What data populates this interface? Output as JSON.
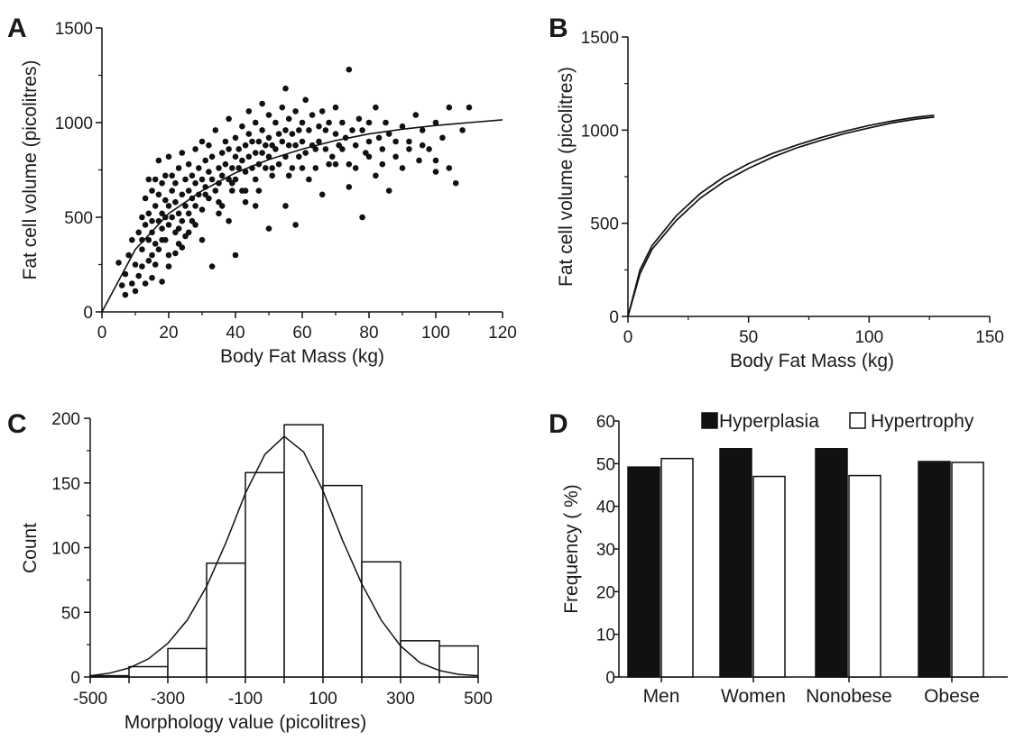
{
  "panels": [
    {
      "letter": "A"
    },
    {
      "letter": "B"
    },
    {
      "letter": "C"
    },
    {
      "letter": "D"
    }
  ],
  "chart_data": [
    {
      "id": "A",
      "type": "scatter",
      "xlabel": "Body Fat Mass (kg)",
      "ylabel": "Fat cell volume  (picolitres)",
      "xlim": [
        0,
        120
      ],
      "ylim": [
        0,
        1500
      ],
      "xticks": [
        "0",
        "20",
        "40",
        "60",
        "80",
        "100",
        "120"
      ],
      "yticks": [
        "0",
        "500",
        "1000",
        "1500"
      ],
      "points": [
        [
          5,
          260
        ],
        [
          6,
          140
        ],
        [
          7,
          90
        ],
        [
          7,
          200
        ],
        [
          8,
          300
        ],
        [
          9,
          150
        ],
        [
          9,
          380
        ],
        [
          10,
          250
        ],
        [
          10,
          110
        ],
        [
          11,
          420
        ],
        [
          11,
          190
        ],
        [
          12,
          500
        ],
        [
          12,
          330
        ],
        [
          12,
          240
        ],
        [
          13,
          460
        ],
        [
          13,
          150
        ],
        [
          13,
          600
        ],
        [
          14,
          380
        ],
        [
          14,
          270
        ],
        [
          14,
          520
        ],
        [
          15,
          640
        ],
        [
          15,
          300
        ],
        [
          15,
          420
        ],
        [
          15,
          180
        ],
        [
          16,
          560
        ],
        [
          16,
          700
        ],
        [
          16,
          360
        ],
        [
          16,
          250
        ],
        [
          17,
          480
        ],
        [
          17,
          620
        ],
        [
          17,
          800
        ],
        [
          17,
          330
        ],
        [
          18,
          520
        ],
        [
          18,
          440
        ],
        [
          18,
          680
        ],
        [
          18,
          160
        ],
        [
          19,
          590
        ],
        [
          19,
          720
        ],
        [
          19,
          380
        ],
        [
          20,
          460
        ],
        [
          20,
          560
        ],
        [
          20,
          820
        ],
        [
          20,
          300
        ],
        [
          21,
          640
        ],
        [
          21,
          500
        ],
        [
          21,
          720
        ],
        [
          22,
          420
        ],
        [
          22,
          580
        ],
        [
          22,
          680
        ],
        [
          23,
          520
        ],
        [
          23,
          760
        ],
        [
          23,
          360
        ],
        [
          24,
          620
        ],
        [
          24,
          480
        ],
        [
          24,
          840
        ],
        [
          25,
          560
        ],
        [
          25,
          700
        ],
        [
          25,
          400
        ],
        [
          26,
          640
        ],
        [
          26,
          780
        ],
        [
          26,
          520
        ],
        [
          27,
          600
        ],
        [
          27,
          720
        ],
        [
          28,
          680
        ],
        [
          28,
          560
        ],
        [
          28,
          860
        ],
        [
          29,
          620
        ],
        [
          29,
          760
        ],
        [
          30,
          700
        ],
        [
          30,
          540
        ],
        [
          30,
          900
        ],
        [
          31,
          660
        ],
        [
          31,
          800
        ],
        [
          32,
          740
        ],
        [
          32,
          600
        ],
        [
          32,
          880
        ],
        [
          33,
          700
        ],
        [
          33,
          820
        ],
        [
          34,
          640
        ],
        [
          34,
          960
        ],
        [
          35,
          760
        ],
        [
          35,
          680
        ],
        [
          36,
          840
        ],
        [
          36,
          720
        ],
        [
          36,
          560
        ],
        [
          37,
          900
        ],
        [
          37,
          780
        ],
        [
          38,
          700
        ],
        [
          38,
          860
        ],
        [
          38,
          1020
        ],
        [
          39,
          760
        ],
        [
          39,
          640
        ],
        [
          40,
          820
        ],
        [
          40,
          920
        ],
        [
          40,
          700
        ],
        [
          41,
          860
        ],
        [
          41,
          760
        ],
        [
          42,
          980
        ],
        [
          42,
          800
        ],
        [
          42,
          640
        ],
        [
          43,
          880
        ],
        [
          43,
          740
        ],
        [
          44,
          940
        ],
        [
          44,
          820
        ],
        [
          44,
          1060
        ],
        [
          45,
          760
        ],
        [
          45,
          900
        ],
        [
          46,
          840
        ],
        [
          46,
          700
        ],
        [
          46,
          1000
        ],
        [
          47,
          900
        ],
        [
          47,
          780
        ],
        [
          48,
          960
        ],
        [
          48,
          840
        ],
        [
          48,
          1100
        ],
        [
          49,
          880
        ],
        [
          49,
          760
        ],
        [
          50,
          920
        ],
        [
          50,
          1040
        ],
        [
          50,
          820
        ],
        [
          51,
          880
        ],
        [
          51,
          720
        ],
        [
          52,
          1000
        ],
        [
          52,
          860
        ],
        [
          53,
          940
        ],
        [
          53,
          780
        ],
        [
          54,
          1080
        ],
        [
          54,
          900
        ],
        [
          55,
          960
        ],
        [
          55,
          820
        ],
        [
          55,
          1180
        ],
        [
          56,
          880
        ],
        [
          56,
          1020
        ],
        [
          57,
          940
        ],
        [
          57,
          760
        ],
        [
          58,
          1060
        ],
        [
          58,
          880
        ],
        [
          59,
          960
        ],
        [
          59,
          820
        ],
        [
          60,
          1000
        ],
        [
          60,
          900
        ],
        [
          61,
          1120
        ],
        [
          61,
          840
        ],
        [
          62,
          960
        ],
        [
          63,
          880
        ],
        [
          63,
          1040
        ],
        [
          64,
          760
        ],
        [
          65,
          980
        ],
        [
          65,
          900
        ],
        [
          66,
          1060
        ],
        [
          67,
          860
        ],
        [
          67,
          960
        ],
        [
          68,
          1000
        ],
        [
          69,
          820
        ],
        [
          70,
          940
        ],
        [
          70,
          1080
        ],
        [
          71,
          880
        ],
        [
          72,
          1000
        ],
        [
          73,
          920
        ],
        [
          74,
          1280
        ],
        [
          74,
          780
        ],
        [
          75,
          960
        ],
        [
          76,
          880
        ],
        [
          77,
          1020
        ],
        [
          78,
          960
        ],
        [
          79,
          840
        ],
        [
          80,
          1000
        ],
        [
          80,
          900
        ],
        [
          82,
          1080
        ],
        [
          83,
          920
        ],
        [
          84,
          860
        ],
        [
          85,
          1000
        ],
        [
          86,
          940
        ],
        [
          88,
          820
        ],
        [
          90,
          980
        ],
        [
          92,
          900
        ],
        [
          94,
          1040
        ],
        [
          96,
          960
        ],
        [
          98,
          860
        ],
        [
          100,
          1000
        ],
        [
          102,
          920
        ],
        [
          104,
          1080
        ],
        [
          106,
          680
        ],
        [
          108,
          960
        ],
        [
          110,
          1080
        ],
        [
          14,
          700
        ],
        [
          18,
          380
        ],
        [
          20,
          240
        ],
        [
          22,
          310
        ],
        [
          24,
          340
        ],
        [
          26,
          420
        ],
        [
          28,
          460
        ],
        [
          30,
          380
        ],
        [
          33,
          240
        ],
        [
          35,
          520
        ],
        [
          38,
          480
        ],
        [
          40,
          300
        ],
        [
          43,
          580
        ],
        [
          46,
          560
        ],
        [
          50,
          440
        ],
        [
          55,
          560
        ],
        [
          58,
          460
        ],
        [
          62,
          700
        ],
        [
          66,
          620
        ],
        [
          70,
          780
        ],
        [
          74,
          660
        ],
        [
          78,
          500
        ],
        [
          82,
          720
        ],
        [
          86,
          640
        ],
        [
          90,
          760
        ],
        [
          95,
          800
        ],
        [
          100,
          740
        ],
        [
          104,
          760
        ],
        [
          12,
          380
        ],
        [
          15,
          480
        ],
        [
          19,
          500
        ],
        [
          23,
          440
        ],
        [
          27,
          480
        ],
        [
          31,
          620
        ],
        [
          35,
          580
        ],
        [
          39,
          680
        ],
        [
          43,
          640
        ],
        [
          47,
          640
        ],
        [
          51,
          760
        ],
        [
          56,
          720
        ],
        [
          60,
          760
        ],
        [
          64,
          860
        ],
        [
          68,
          780
        ],
        [
          72,
          860
        ],
        [
          76,
          760
        ],
        [
          80,
          820
        ],
        [
          84,
          780
        ],
        [
          88,
          900
        ],
        [
          92,
          860
        ],
        [
          96,
          880
        ],
        [
          100,
          800
        ]
      ],
      "fit": {
        "x": [
          0,
          10,
          20,
          30,
          40,
          50,
          60,
          70,
          80,
          90,
          100,
          110,
          120
        ],
        "y": [
          0,
          330,
          520,
          640,
          735,
          805,
          860,
          905,
          940,
          965,
          985,
          1000,
          1015
        ]
      }
    },
    {
      "id": "B",
      "type": "line",
      "xlabel": "Body Fat Mass (kg)",
      "ylabel": "Fat cell volume (picolitres)",
      "xlim": [
        0,
        150
      ],
      "ylim": [
        0,
        1500
      ],
      "xticks": [
        "0",
        "50",
        "100",
        "150"
      ],
      "yticks": [
        "0",
        "500",
        "1000",
        "1500"
      ],
      "series": [
        {
          "x": [
            0,
            5,
            10,
            20,
            30,
            40,
            50,
            60,
            70,
            80,
            90,
            100,
            110,
            120,
            127
          ],
          "y": [
            0,
            250,
            380,
            540,
            660,
            750,
            820,
            875,
            920,
            960,
            995,
            1025,
            1050,
            1070,
            1080
          ]
        },
        {
          "x": [
            0,
            5,
            10,
            20,
            30,
            40,
            50,
            60,
            70,
            80,
            90,
            100,
            110,
            120,
            127
          ],
          "y": [
            0,
            230,
            360,
            515,
            635,
            725,
            795,
            855,
            905,
            945,
            982,
            1012,
            1040,
            1060,
            1070
          ]
        }
      ]
    },
    {
      "id": "C",
      "type": "bar",
      "xlabel": "Morphology value (picolitres)",
      "ylabel": "Count",
      "xlim": [
        -500,
        500
      ],
      "ylim": [
        0,
        200
      ],
      "xticks": [
        "-500",
        "-300",
        "-100",
        "100",
        "300",
        "500"
      ],
      "yticks": [
        "0",
        "50",
        "100",
        "150",
        "200"
      ],
      "bins": [
        {
          "x0": -500,
          "x1": -400,
          "count": 1
        },
        {
          "x0": -400,
          "x1": -300,
          "count": 8
        },
        {
          "x0": -300,
          "x1": -200,
          "count": 22
        },
        {
          "x0": -200,
          "x1": -100,
          "count": 88
        },
        {
          "x0": -100,
          "x1": 0,
          "count": 158
        },
        {
          "x0": 0,
          "x1": 100,
          "count": 195
        },
        {
          "x0": 100,
          "x1": 200,
          "count": 148
        },
        {
          "x0": 200,
          "x1": 300,
          "count": 89
        },
        {
          "x0": 300,
          "x1": 400,
          "count": 28
        },
        {
          "x0": 400,
          "x1": 500,
          "count": 24
        }
      ],
      "curve": {
        "x": [
          -500,
          -450,
          -400,
          -350,
          -300,
          -250,
          -200,
          -150,
          -100,
          -50,
          0,
          50,
          100,
          150,
          200,
          250,
          300,
          350,
          400,
          450,
          500
        ],
        "y": [
          1,
          3,
          7,
          14,
          26,
          44,
          70,
          104,
          142,
          172,
          186,
          174,
          144,
          106,
          72,
          44,
          24,
          11,
          5,
          2,
          1
        ]
      }
    },
    {
      "id": "D",
      "type": "bar",
      "ylabel": "Frequency ( %)",
      "ylim": [
        0,
        60
      ],
      "yticks": [
        "0",
        "10",
        "20",
        "30",
        "40",
        "50",
        "60"
      ],
      "categories": [
        "Men",
        "Women",
        "Nonobese",
        "Obese"
      ],
      "legend": "top-right",
      "series": [
        {
          "name": "Hyperplasia",
          "values": [
            49.2,
            53.5,
            53.5,
            50.5
          ],
          "color": "#111111"
        },
        {
          "name": "Hypertrophy",
          "values": [
            51.2,
            47.0,
            47.2,
            50.3
          ],
          "color": "#ffffff"
        }
      ]
    }
  ]
}
